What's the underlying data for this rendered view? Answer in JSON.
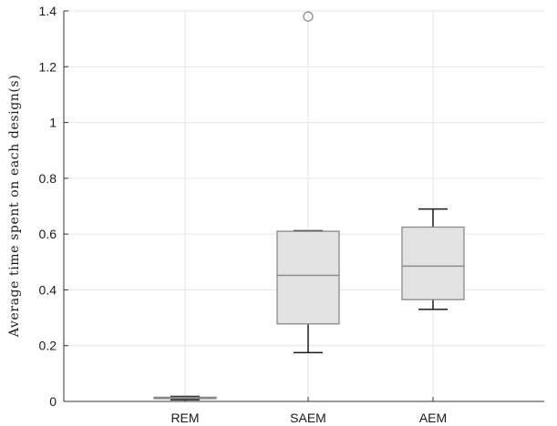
{
  "chart_data": {
    "type": "box",
    "title": "",
    "xlabel": "",
    "ylabel": "Average time spent on each design(s)",
    "categories": [
      "REM",
      "SAEM",
      "AEM"
    ],
    "boxes": [
      {
        "name": "REM",
        "min": 0.006,
        "q1": 0.01,
        "median": 0.012,
        "q3": 0.015,
        "max": 0.018,
        "outliers": []
      },
      {
        "name": "SAEM",
        "min": 0.175,
        "q1": 0.278,
        "median": 0.452,
        "q3": 0.61,
        "max": 0.612,
        "outliers": [
          1.38
        ]
      },
      {
        "name": "AEM",
        "min": 0.33,
        "q1": 0.365,
        "median": 0.485,
        "q3": 0.625,
        "max": 0.69,
        "outliers": []
      }
    ],
    "ylim": [
      0,
      1.4
    ],
    "yticks": [
      "0",
      "0.2",
      "0.4",
      "0.6",
      "0.8",
      "1",
      "1.2",
      "1.4"
    ],
    "grid": true,
    "box_color": "#e3e3e3",
    "box_edge_color": "#8a8a8a",
    "whisker_color": "#1a1a1a",
    "median_color": "#8a8a8a",
    "outlier_color": "#8a8a8a"
  }
}
